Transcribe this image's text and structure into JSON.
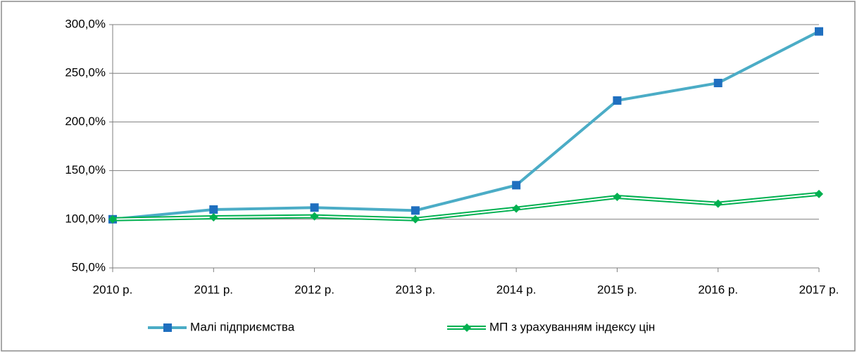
{
  "chart_data": {
    "type": "line",
    "categories": [
      "2010 р.",
      "2011 р.",
      "2012 р.",
      "2013 р.",
      "2014 р.",
      "2015 р.",
      "2016 р.",
      "2017 р."
    ],
    "series": [
      {
        "name": "Малі підприємства",
        "color": "#4bacc6",
        "marker_color": "#1f6fbf",
        "values": [
          100,
          110,
          112,
          109,
          135,
          222,
          240,
          293
        ]
      },
      {
        "name": "МП з урахуванням індексу цін",
        "color": "#00b050",
        "values": [
          100,
          102,
          103,
          100,
          111,
          123,
          116,
          126
        ]
      }
    ],
    "ylim": [
      50,
      300
    ],
    "yticks": [
      {
        "value": 50,
        "label": "50,0%"
      },
      {
        "value": 100,
        "label": "100,0%"
      },
      {
        "value": 150,
        "label": "150,0%"
      },
      {
        "value": 200,
        "label": "200,0%"
      },
      {
        "value": 250,
        "label": "250,0%"
      },
      {
        "value": 300,
        "label": "300,0%"
      }
    ],
    "grid": true,
    "legend": "bottom"
  }
}
